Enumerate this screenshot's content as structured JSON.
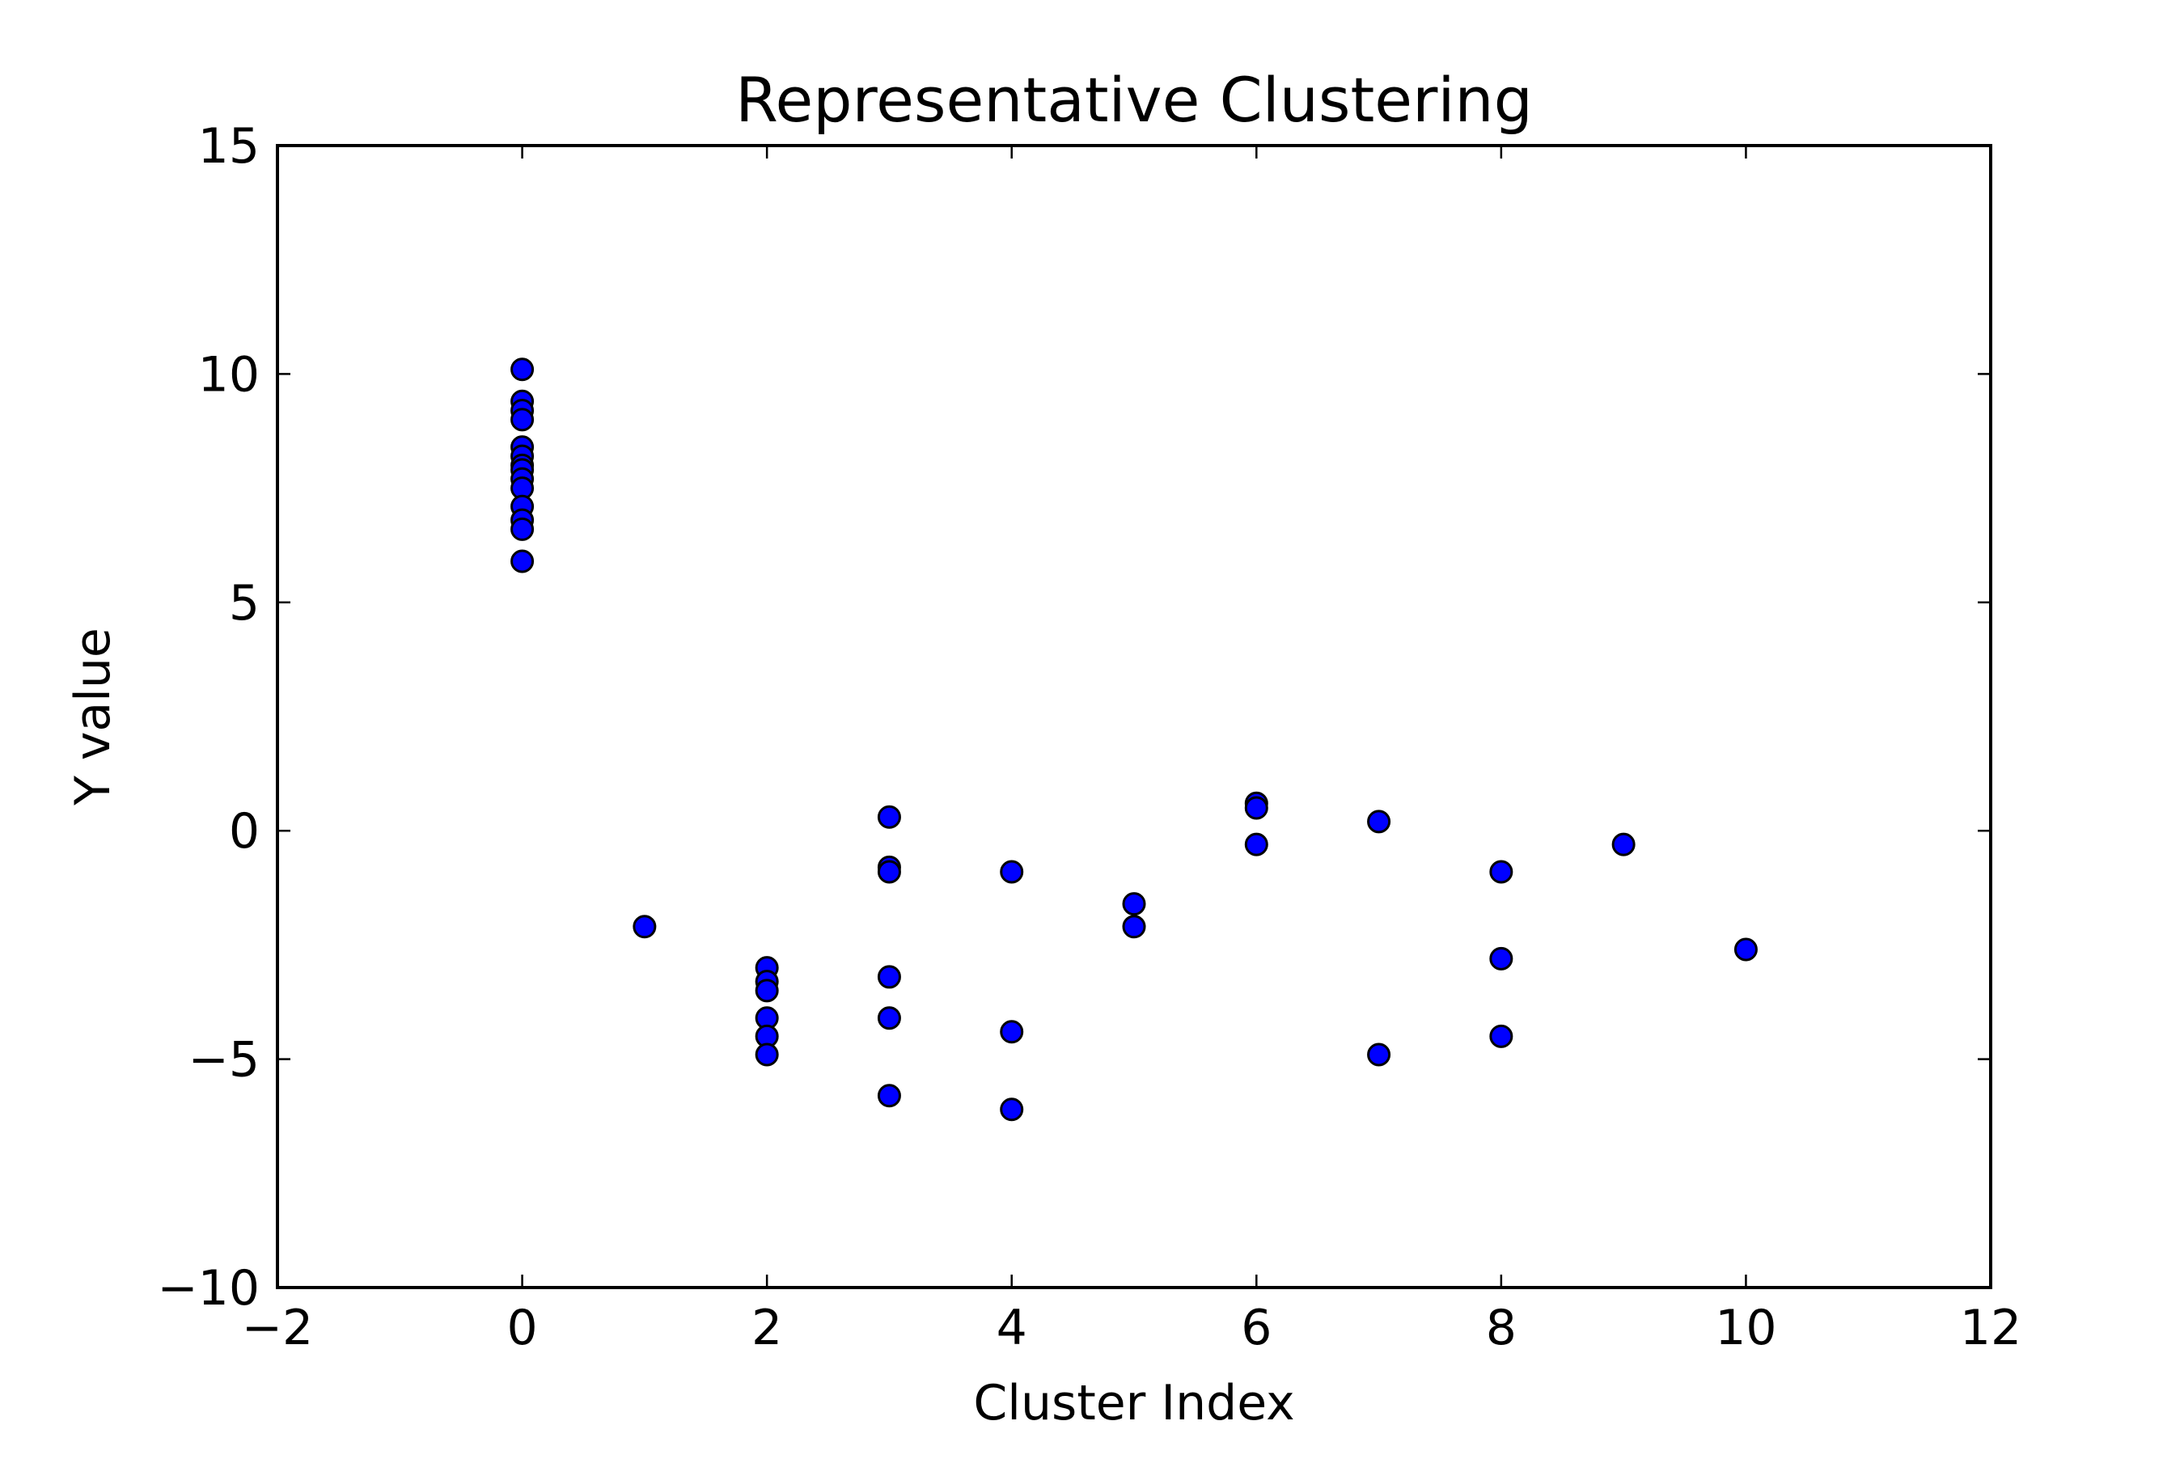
{
  "chart_data": {
    "type": "scatter",
    "title": "Representative Clustering",
    "xlabel": "Cluster Index",
    "ylabel": "Y value",
    "xlim": [
      -2,
      12
    ],
    "ylim": [
      -10,
      15
    ],
    "xticks": [
      -2,
      0,
      2,
      4,
      6,
      8,
      10,
      12
    ],
    "yticks": [
      -10,
      -5,
      0,
      5,
      10,
      15
    ],
    "xtick_labels": [
      "−2",
      "0",
      "2",
      "4",
      "6",
      "8",
      "10",
      "12"
    ],
    "ytick_labels": [
      "−10",
      "−5",
      "0",
      "5",
      "10",
      "15"
    ],
    "grid": false,
    "legend": false,
    "marker_color": "#0000ff",
    "marker_edge_color": "#000000",
    "series": [
      {
        "points": [
          {
            "x": 0,
            "y": 10.1
          },
          {
            "x": 0,
            "y": 9.4
          },
          {
            "x": 0,
            "y": 9.2
          },
          {
            "x": 0,
            "y": 9.0
          },
          {
            "x": 0,
            "y": 8.4
          },
          {
            "x": 0,
            "y": 8.2
          },
          {
            "x": 0,
            "y": 8.0
          },
          {
            "x": 0,
            "y": 7.9
          },
          {
            "x": 0,
            "y": 7.7
          },
          {
            "x": 0,
            "y": 7.5
          },
          {
            "x": 0,
            "y": 7.1
          },
          {
            "x": 0,
            "y": 6.8
          },
          {
            "x": 0,
            "y": 6.6
          },
          {
            "x": 0,
            "y": 5.9
          },
          {
            "x": 1,
            "y": -2.1
          },
          {
            "x": 2,
            "y": -3.0
          },
          {
            "x": 2,
            "y": -3.3
          },
          {
            "x": 2,
            "y": -3.5
          },
          {
            "x": 2,
            "y": -4.1
          },
          {
            "x": 2,
            "y": -4.5
          },
          {
            "x": 2,
            "y": -4.9
          },
          {
            "x": 3,
            "y": 0.3
          },
          {
            "x": 3,
            "y": -0.8
          },
          {
            "x": 3,
            "y": -0.9
          },
          {
            "x": 3,
            "y": -3.2
          },
          {
            "x": 3,
            "y": -4.1
          },
          {
            "x": 3,
            "y": -5.8
          },
          {
            "x": 4,
            "y": -0.9
          },
          {
            "x": 4,
            "y": -4.4
          },
          {
            "x": 4,
            "y": -6.1
          },
          {
            "x": 5,
            "y": -1.6
          },
          {
            "x": 5,
            "y": -2.1
          },
          {
            "x": 6,
            "y": 0.6
          },
          {
            "x": 6,
            "y": 0.5
          },
          {
            "x": 6,
            "y": -0.3
          },
          {
            "x": 7,
            "y": 0.2
          },
          {
            "x": 7,
            "y": -4.9
          },
          {
            "x": 8,
            "y": -0.9
          },
          {
            "x": 8,
            "y": -2.8
          },
          {
            "x": 8,
            "y": -4.5
          },
          {
            "x": 9,
            "y": -0.3
          },
          {
            "x": 10,
            "y": -2.6
          }
        ]
      }
    ]
  }
}
